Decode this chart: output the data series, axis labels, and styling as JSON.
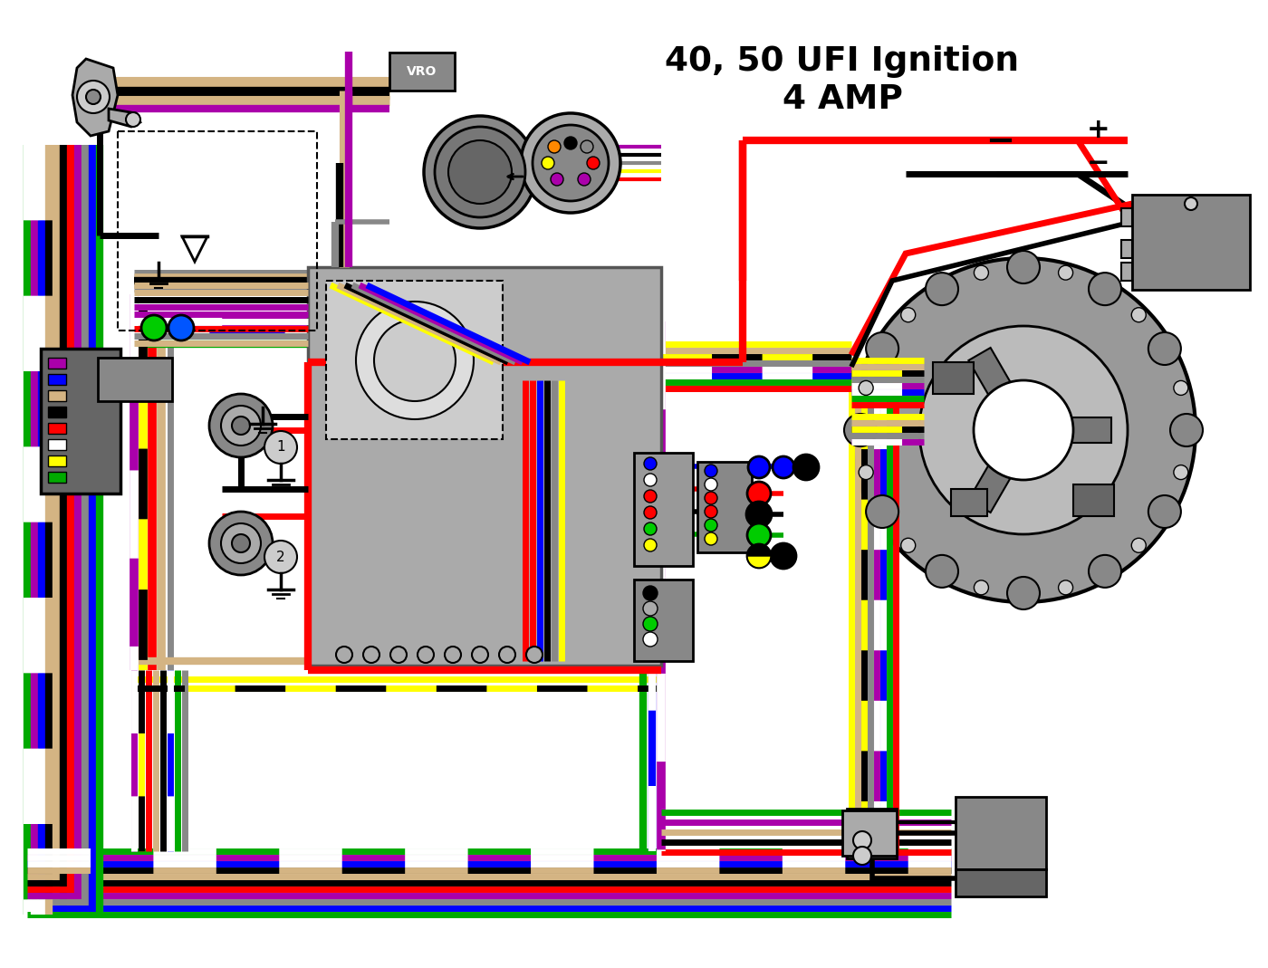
{
  "title_line1": "40, 50 UFI Ignition",
  "title_line2": "4 AMP",
  "background_color": "#ffffff",
  "fig_width": 14.0,
  "fig_height": 10.69,
  "vro_label": "VRO"
}
